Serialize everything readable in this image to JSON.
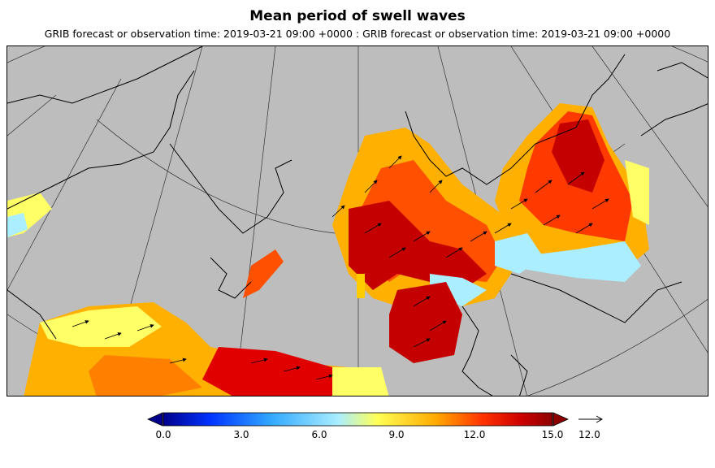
{
  "header": {
    "title": "Mean period of swell waves",
    "subtitle": "GRIB forecast or observation time: 2019-03-21 09:00 +0000 : GRIB forecast or observation time: 2019-03-21 09:00 +0000"
  },
  "colors": {
    "land": "#bdbdbd",
    "coastline": "#000000",
    "graticule": "#333333",
    "arrow": "#000000"
  },
  "colorbar": {
    "ticks": [
      "0.0",
      "3.0",
      "6.0",
      "9.0",
      "12.0",
      "15.0"
    ],
    "range": [
      0,
      15
    ],
    "stops": [
      "#00008c",
      "#0033ff",
      "#33aaff",
      "#aaeeff",
      "#ffff55",
      "#ffaa00",
      "#ff3300",
      "#cc0000",
      "#8c0000"
    ]
  },
  "vector_reference": {
    "label": "12.0",
    "icon": "arrow-right-icon"
  }
}
